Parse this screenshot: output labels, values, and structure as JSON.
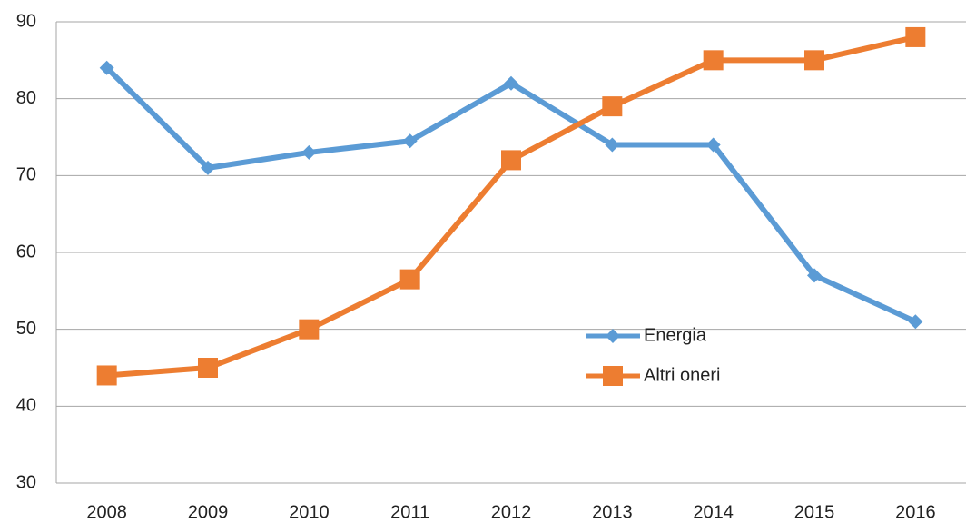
{
  "chart_data": {
    "type": "line",
    "categories": [
      "2008",
      "2009",
      "2010",
      "2011",
      "2012",
      "2013",
      "2014",
      "2015",
      "2016"
    ],
    "series": [
      {
        "name": "Energia",
        "color": "#5b9bd5",
        "marker": "diamond",
        "values": [
          84,
          71,
          73,
          74.5,
          82,
          74,
          74,
          57,
          51
        ]
      },
      {
        "name": "Altri oneri",
        "color": "#ed7d31",
        "marker": "square",
        "values": [
          44,
          45,
          50,
          56.5,
          72,
          79,
          85,
          85,
          88
        ]
      }
    ],
    "ylim": [
      30,
      90
    ],
    "yticks": [
      30,
      40,
      50,
      60,
      70,
      80,
      90
    ],
    "grid": true
  }
}
